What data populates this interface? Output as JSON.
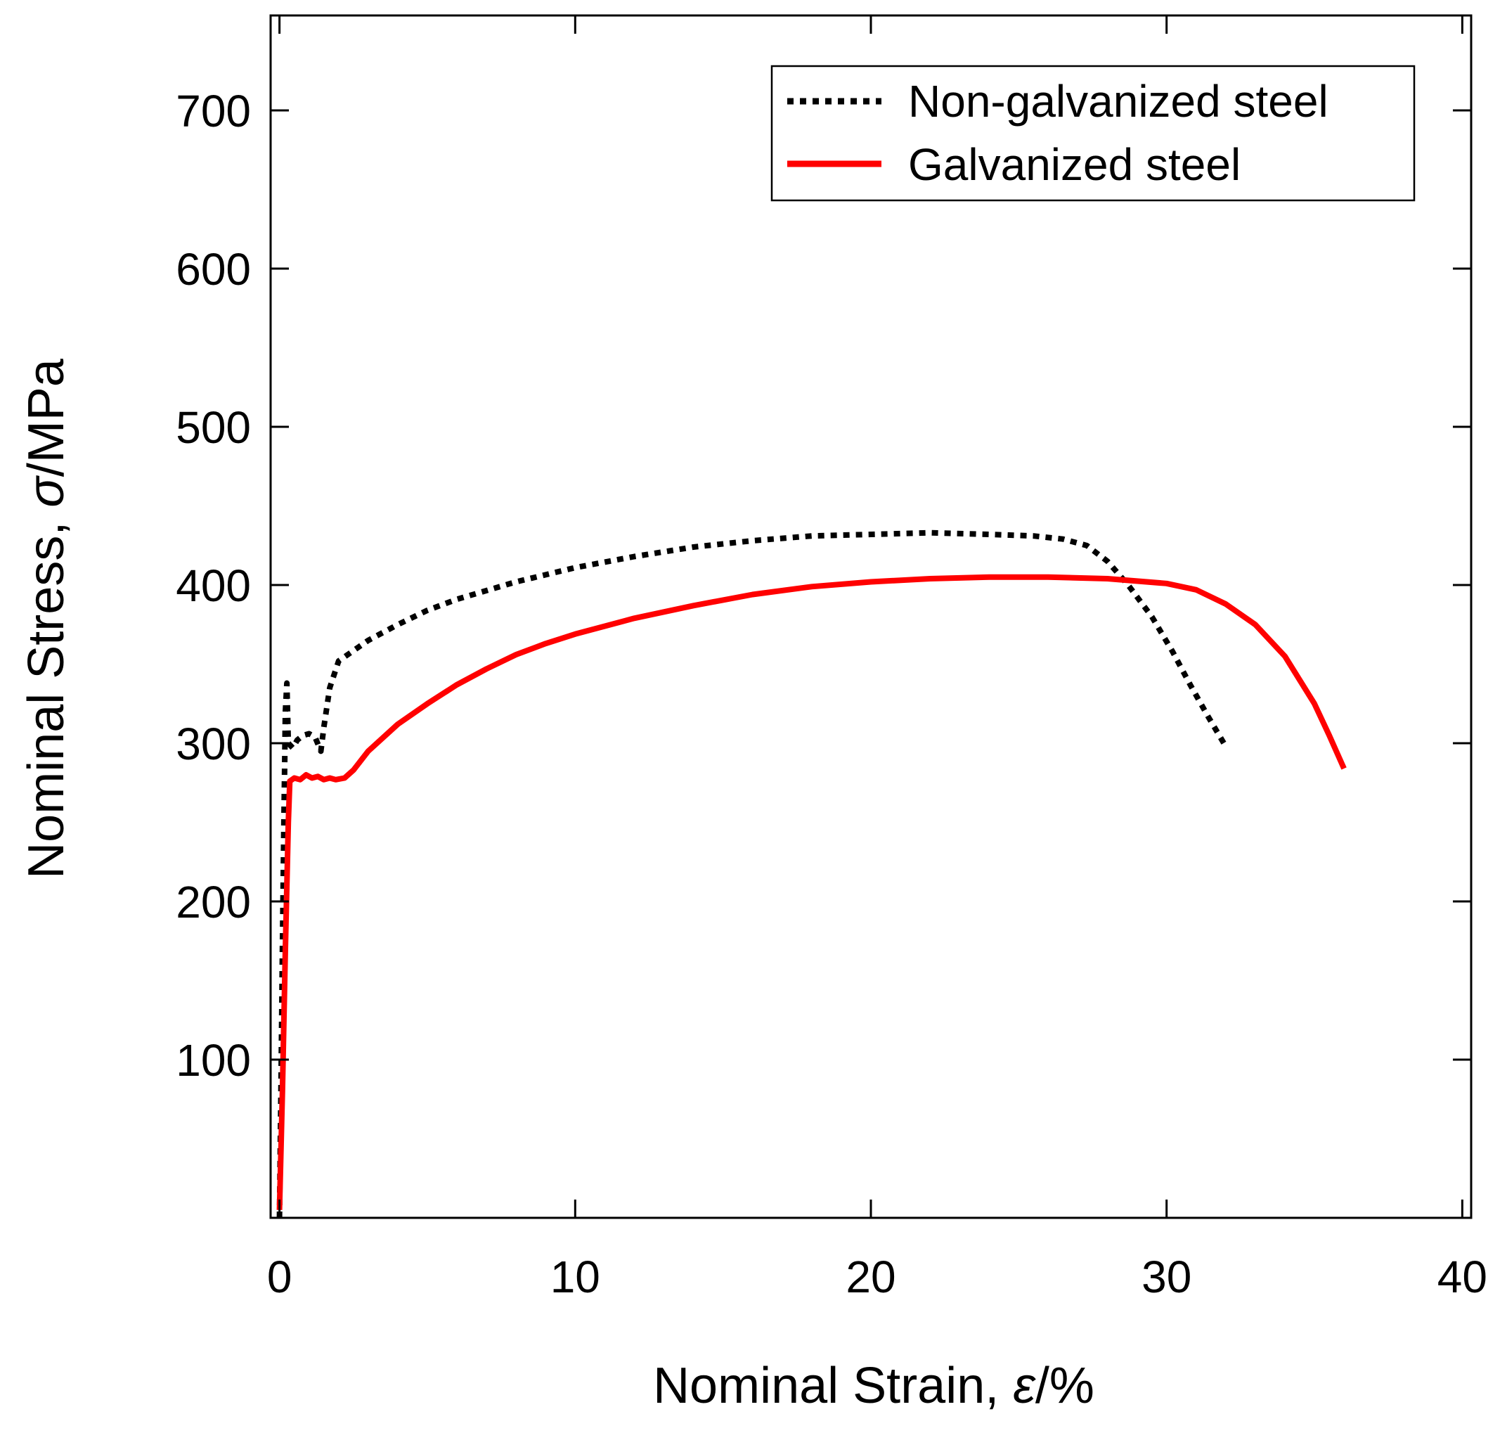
{
  "chart_data": {
    "type": "line",
    "title": "",
    "xlabel": "Nominal Strain, ε/%",
    "xlabel_prefix": "Nominal Strain, ",
    "xlabel_symbol": "ε",
    "xlabel_unit": "/%",
    "ylabel": "Nominal Stress, σ/MPa",
    "ylabel_prefix": "Nominal Stress, ",
    "ylabel_symbol": "σ",
    "ylabel_unit": "/MPa",
    "xlim": [
      -0.3,
      40.3
    ],
    "ylim": [
      0,
      760
    ],
    "xticks": [
      0,
      10,
      20,
      30,
      40
    ],
    "xtick_labels": [
      "0",
      "10",
      "20",
      "30",
      "40"
    ],
    "yticks": [
      100,
      200,
      300,
      400,
      500,
      600,
      700
    ],
    "ytick_labels": [
      "100",
      "200",
      "300",
      "400",
      "500",
      "600",
      "700"
    ],
    "grid": false,
    "legend_position": "top-right",
    "series": [
      {
        "name": "Non-galvanized steel",
        "style": "dotted",
        "color": "#000000",
        "points": [
          [
            0.0,
            0
          ],
          [
            0.05,
            80
          ],
          [
            0.1,
            170
          ],
          [
            0.15,
            250
          ],
          [
            0.2,
            320
          ],
          [
            0.25,
            338
          ],
          [
            0.3,
            300
          ],
          [
            0.45,
            297
          ],
          [
            0.6,
            302
          ],
          [
            0.8,
            305
          ],
          [
            1.0,
            306
          ],
          [
            1.2,
            304
          ],
          [
            1.4,
            295
          ],
          [
            1.5,
            310
          ],
          [
            1.7,
            335
          ],
          [
            2.0,
            352
          ],
          [
            3.0,
            365
          ],
          [
            4.0,
            375
          ],
          [
            5.0,
            384
          ],
          [
            6.0,
            391
          ],
          [
            8.0,
            402
          ],
          [
            10.0,
            411
          ],
          [
            12.0,
            418
          ],
          [
            14.0,
            424
          ],
          [
            16.0,
            428
          ],
          [
            18.0,
            431
          ],
          [
            20.0,
            432
          ],
          [
            22.0,
            433
          ],
          [
            24.0,
            432
          ],
          [
            25.5,
            431
          ],
          [
            26.5,
            429
          ],
          [
            27.3,
            425
          ],
          [
            28.0,
            415
          ],
          [
            28.7,
            400
          ],
          [
            29.5,
            380
          ],
          [
            30.2,
            358
          ],
          [
            30.8,
            337
          ],
          [
            31.4,
            317
          ],
          [
            32.0,
            298
          ]
        ]
      },
      {
        "name": "Galvanized steel",
        "style": "solid",
        "color": "#ff0000",
        "points": [
          [
            0.0,
            5
          ],
          [
            0.1,
            80
          ],
          [
            0.2,
            170
          ],
          [
            0.3,
            250
          ],
          [
            0.35,
            276
          ],
          [
            0.5,
            278
          ],
          [
            0.7,
            277
          ],
          [
            0.9,
            280
          ],
          [
            1.1,
            278
          ],
          [
            1.3,
            279
          ],
          [
            1.5,
            277
          ],
          [
            1.7,
            278
          ],
          [
            1.9,
            277
          ],
          [
            2.2,
            278
          ],
          [
            2.5,
            283
          ],
          [
            3.0,
            295
          ],
          [
            4.0,
            312
          ],
          [
            5.0,
            325
          ],
          [
            6.0,
            337
          ],
          [
            7.0,
            347
          ],
          [
            8.0,
            356
          ],
          [
            9.0,
            363
          ],
          [
            10.0,
            369
          ],
          [
            12.0,
            379
          ],
          [
            14.0,
            387
          ],
          [
            16.0,
            394
          ],
          [
            18.0,
            399
          ],
          [
            20.0,
            402
          ],
          [
            22.0,
            404
          ],
          [
            24.0,
            405
          ],
          [
            26.0,
            405
          ],
          [
            28.0,
            404
          ],
          [
            30.0,
            401
          ],
          [
            31.0,
            397
          ],
          [
            32.0,
            388
          ],
          [
            33.0,
            375
          ],
          [
            34.0,
            355
          ],
          [
            35.0,
            325
          ],
          [
            35.5,
            305
          ],
          [
            36.0,
            284
          ]
        ]
      }
    ]
  }
}
